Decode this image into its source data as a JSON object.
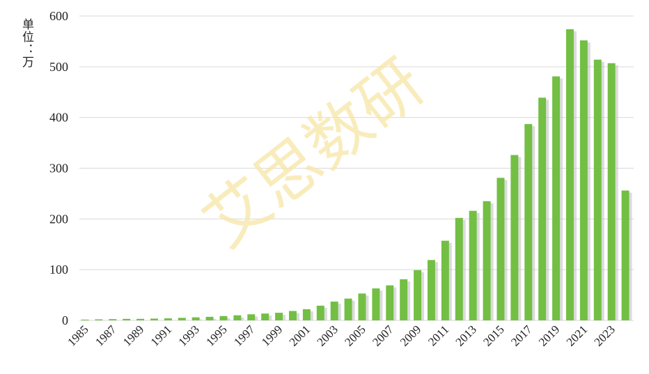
{
  "unit_label": "单位：万",
  "watermark": "艾思数研",
  "colors": {
    "bar": "#72bf44",
    "bar_shadow": "#bdbdbd",
    "grid": "#d9d9d9",
    "text": "#222222",
    "watermark": "#f7e6a6"
  },
  "chart_data": {
    "type": "bar",
    "title": "",
    "xlabel": "",
    "ylabel": "单位：万",
    "ylim": [
      0,
      600
    ],
    "yticks": [
      0,
      100,
      200,
      300,
      400,
      500,
      600
    ],
    "grid": true,
    "legend": "none",
    "categories": [
      "1985",
      "1986",
      "1987",
      "1988",
      "1989",
      "1990",
      "1991",
      "1992",
      "1993",
      "1994",
      "1995",
      "1996",
      "1997",
      "1998",
      "1999",
      "2000",
      "2001",
      "2002",
      "2003",
      "2004",
      "2005",
      "2006",
      "2007",
      "2008",
      "2009",
      "2010",
      "2011",
      "2012",
      "2013",
      "2014",
      "2015",
      "2016",
      "2017",
      "2018",
      "2019",
      "2020",
      "2021",
      "2022",
      "2023",
      "2024"
    ],
    "xtick_labels": [
      "1985",
      "1987",
      "1989",
      "1991",
      "1993",
      "1995",
      "1997",
      "1999",
      "2001",
      "2003",
      "2005",
      "2007",
      "2009",
      "2011",
      "2013",
      "2015",
      "2017",
      "2019",
      "2021",
      "2023"
    ],
    "values": [
      1.5,
      2,
      2.5,
      3,
      3,
      3.5,
      4,
      5,
      6,
      7,
      8.5,
      10,
      12,
      13.5,
      15,
      18.5,
      22,
      29,
      37,
      43,
      53,
      63,
      69,
      81,
      99,
      119,
      157,
      202,
      216,
      235,
      281,
      326,
      387,
      439,
      481,
      574,
      552,
      514,
      507,
      256
    ]
  }
}
